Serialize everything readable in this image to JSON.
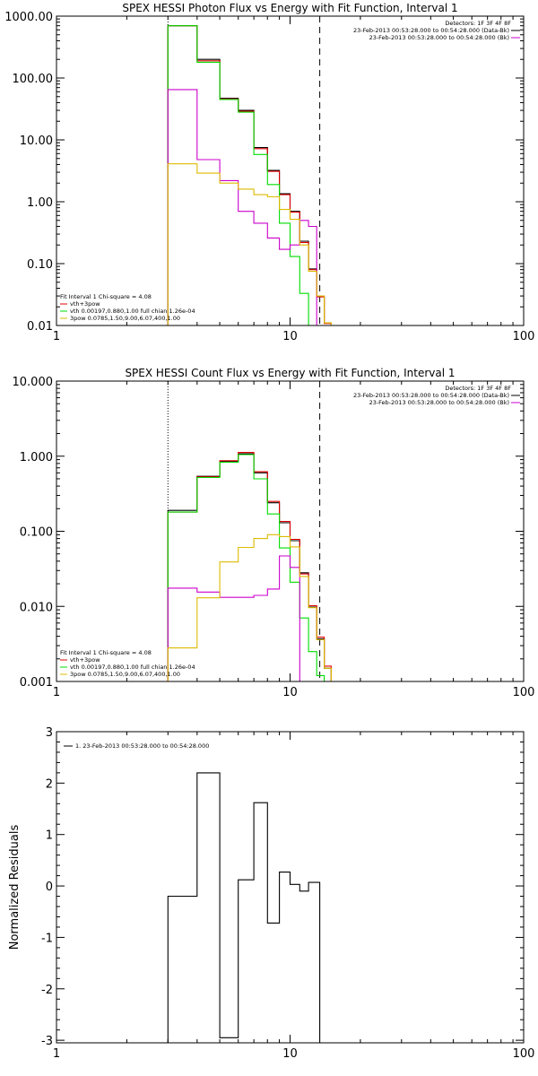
{
  "chart_data": [
    {
      "type": "line",
      "step": true,
      "title": "SPEX HESSI Photon Flux vs Energy with Fit Function, Interval 1",
      "xlabel": "",
      "ylabel": "",
      "xscale": "log",
      "yscale": "log",
      "xlim": [
        1,
        100
      ],
      "ylim": [
        0.01,
        1000
      ],
      "xticks": [
        1,
        10,
        100
      ],
      "xtick_labels": [
        "1",
        "10",
        "100"
      ],
      "yticks": [
        0.01,
        0.1,
        1,
        10,
        100,
        1000
      ],
      "ytick_labels": [
        "0.01",
        "0.10",
        "1.00",
        "10.00",
        "100.00",
        "1000.00"
      ],
      "vlines": [
        {
          "x": 3,
          "style": "dotted",
          "color": "#000000"
        },
        {
          "x": 13.4,
          "style": "dashed",
          "color": "#000000"
        }
      ],
      "legend_topright": {
        "header": "Detectors: 1F 3F 4F 8F",
        "entries": [
          {
            "label": "23-Feb-2013 00:53:28.000 to 00:54:28.000 (Data-Bk)",
            "color": "#000000"
          },
          {
            "label": "23-Feb-2013 00:53:28.000 to 00:54:28.000 (Bk)",
            "color": "#cc00cc"
          }
        ]
      },
      "legend_bottomleft": {
        "header": "Fit Interval 1   Chi-square = 4.08",
        "entries": [
          {
            "label": "vth+3pow",
            "color": "#e00000"
          },
          {
            "label": "vth 0.00197,0.880,1.00   full chian 1.26e-04",
            "color": "#00dd00"
          },
          {
            "label": "3pow 0.0785,1.50,9.00,6.07,400,1.00",
            "color": "#ddbb00"
          }
        ]
      },
      "edges": [
        3,
        4,
        5,
        6,
        7,
        8,
        9,
        10,
        11,
        12,
        13,
        14,
        15,
        16,
        17
      ],
      "series": [
        {
          "color": "#000000",
          "values": [
            700,
            200,
            47,
            30,
            7.5,
            3.2,
            1.35,
            0.7,
            0.23,
            0.082,
            0.03,
            0.011,
            null,
            null
          ]
        },
        {
          "color": "#e00000",
          "values": [
            700,
            190,
            46,
            29,
            7.2,
            3.1,
            1.3,
            0.68,
            0.22,
            0.08,
            0.029,
            0.0108,
            null,
            null
          ]
        },
        {
          "color": "#00dd00",
          "values": [
            700,
            180,
            45,
            28,
            5.8,
            1.9,
            0.45,
            0.13,
            0.033,
            0.005,
            null,
            null,
            null,
            null
          ]
        },
        {
          "color": "#cc00cc",
          "values": [
            65,
            4.8,
            2.2,
            0.7,
            0.45,
            0.26,
            0.17,
            0.2,
            0.5,
            0.4,
            null,
            null,
            null,
            null
          ]
        },
        {
          "color": "#ddbb00",
          "values": [
            4.1,
            2.9,
            2.0,
            1.6,
            1.3,
            1.2,
            0.75,
            0.52,
            0.2,
            0.075,
            0.03,
            0.011,
            null,
            null
          ]
        }
      ]
    },
    {
      "type": "line",
      "step": true,
      "title": "SPEX HESSI Count Flux vs Energy with Fit Function, Interval 1",
      "xlabel": "",
      "ylabel": "",
      "xscale": "log",
      "yscale": "log",
      "xlim": [
        1,
        100
      ],
      "ylim": [
        0.001,
        10
      ],
      "xticks": [
        1,
        10,
        100
      ],
      "xtick_labels": [
        "1",
        "10",
        "100"
      ],
      "yticks": [
        0.001,
        0.01,
        0.1,
        1,
        10
      ],
      "ytick_labels": [
        "0.001",
        "0.010",
        "0.100",
        "1.000",
        "10.000"
      ],
      "vlines": [
        {
          "x": 3,
          "style": "dotted",
          "color": "#000000"
        },
        {
          "x": 13.4,
          "style": "dashed",
          "color": "#000000"
        }
      ],
      "legend_topright": {
        "header": "Detectors: 1F 3F 4F 8F",
        "entries": [
          {
            "label": "23-Feb-2013 00:53:28.000 to 00:54:28.000 (Data-Bk)",
            "color": "#000000"
          },
          {
            "label": "23-Feb-2013 00:53:28.000 to 00:54:28.000 (Bk)",
            "color": "#cc00cc"
          }
        ]
      },
      "legend_bottomleft": {
        "header": "Fit Interval 1   Chi-square = 4.08",
        "entries": [
          {
            "label": "vth+3pow",
            "color": "#e00000"
          },
          {
            "label": "vth 0.00197,0.880,1.00   full chian 1.26e-04",
            "color": "#00dd00"
          },
          {
            "label": "3pow 0.0785,1.50,9.00,6.07,400,1.00",
            "color": "#ddbb00"
          }
        ]
      },
      "edges": [
        3,
        4,
        5,
        6,
        7,
        8,
        9,
        10,
        11,
        12,
        13,
        14,
        15,
        16,
        17
      ],
      "series": [
        {
          "color": "#000000",
          "values": [
            0.19,
            0.54,
            0.85,
            1.08,
            0.6,
            0.24,
            0.13,
            0.075,
            0.028,
            0.0098,
            0.0037,
            0.0015,
            null,
            null
          ]
        },
        {
          "color": "#e00000",
          "values": [
            0.18,
            0.53,
            0.87,
            1.12,
            0.62,
            0.25,
            0.135,
            0.078,
            0.027,
            0.0102,
            0.0039,
            0.0016,
            null,
            null
          ]
        },
        {
          "color": "#00dd00",
          "values": [
            0.18,
            0.52,
            0.83,
            1.05,
            0.5,
            0.17,
            0.06,
            0.021,
            0.007,
            0.0025,
            0.0012,
            null,
            null,
            null
          ]
        },
        {
          "color": "#cc00cc",
          "values": [
            0.0175,
            0.0155,
            0.0132,
            0.0132,
            0.014,
            0.017,
            0.047,
            0.033,
            null,
            null,
            null,
            null,
            null,
            null
          ]
        },
        {
          "color": "#ddbb00",
          "values": [
            0.0028,
            0.013,
            0.039,
            0.061,
            0.08,
            0.09,
            0.085,
            0.062,
            0.025,
            0.0096,
            0.0036,
            0.0015,
            null,
            null
          ]
        }
      ]
    },
    {
      "type": "line",
      "step": true,
      "title": "",
      "xlabel": "",
      "ylabel": "Normalized Residuals",
      "xscale": "log",
      "yscale": "linear",
      "xlim": [
        1,
        100
      ],
      "ylim": [
        -3.05,
        3
      ],
      "xticks": [
        1,
        10,
        100
      ],
      "xtick_labels": [
        "1",
        "10",
        "100"
      ],
      "yticks": [
        -3,
        -2,
        -1,
        0,
        1,
        2,
        3
      ],
      "ytick_labels": [
        "-3",
        "-2",
        "-1",
        "0",
        "1",
        "2",
        "3"
      ],
      "legend_topleft": {
        "entries": [
          {
            "label": "1. 23-Feb-2013 00:53:28.000 to 00:54:28.000",
            "color": "#000000"
          }
        ]
      },
      "edges": [
        3,
        4,
        5,
        6,
        7,
        8,
        9,
        10,
        11,
        12,
        13.4
      ],
      "series": [
        {
          "color": "#000000",
          "values": [
            -0.2,
            2.2,
            -2.95,
            0.12,
            1.62,
            -0.72,
            0.27,
            0.03,
            -0.1,
            0.07
          ]
        }
      ]
    }
  ]
}
